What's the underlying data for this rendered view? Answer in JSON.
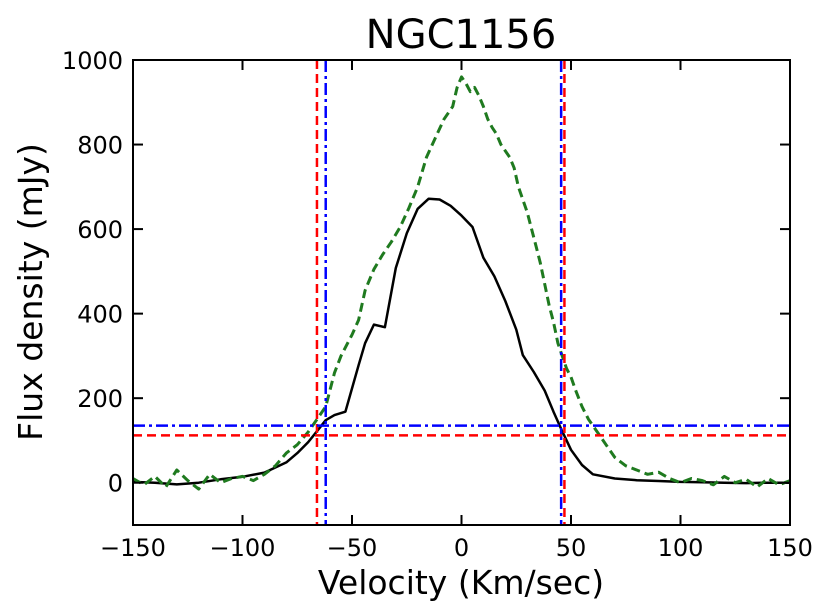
{
  "chart_data": {
    "type": "line",
    "title": "NGC1156",
    "xlabel": "Velocity (Km/sec)",
    "ylabel": "Flux density (mJy)",
    "xlim": [
      -150,
      150
    ],
    "ylim": [
      -100,
      1000
    ],
    "xticks": [
      -150,
      -100,
      -50,
      0,
      50,
      100,
      150
    ],
    "yticks": [
      0,
      200,
      400,
      600,
      800,
      1000
    ],
    "x_tick_labels": [
      "−150",
      "−100",
      "−50",
      "0",
      "50",
      "100",
      "150"
    ],
    "y_tick_labels": [
      "0",
      "200",
      "400",
      "600",
      "800",
      "1000"
    ],
    "grid": false,
    "series": [
      {
        "name": "solid profile",
        "color": "#000000",
        "style": "solid",
        "x": [
          -150,
          -140,
          -130,
          -120,
          -110,
          -100,
          -90,
          -80,
          -75,
          -70,
          -66,
          -62,
          -58,
          -53,
          -47,
          -44,
          -40,
          -35,
          -30,
          -25,
          -20,
          -15,
          -10,
          -5,
          0,
          5,
          10,
          15,
          20,
          25,
          28,
          33,
          38,
          42,
          46,
          50,
          55,
          60,
          70,
          80,
          90,
          100,
          110,
          120,
          130,
          140,
          150
        ],
        "y": [
          2,
          0,
          -4,
          0,
          8,
          14,
          24,
          48,
          70,
          96,
          122,
          148,
          160,
          168,
          278,
          330,
          374,
          368,
          508,
          590,
          648,
          672,
          670,
          655,
          632,
          605,
          532,
          488,
          430,
          362,
          302,
          262,
          218,
          168,
          122,
          78,
          42,
          20,
          10,
          6,
          4,
          2,
          1,
          0,
          -1,
          0,
          0
        ]
      },
      {
        "name": "dashed profile",
        "color": "#1f7a1f",
        "style": "dashed",
        "x": [
          -150,
          -145,
          -140,
          -135,
          -130,
          -125,
          -120,
          -115,
          -110,
          -105,
          -100,
          -95,
          -90,
          -85,
          -80,
          -75,
          -70,
          -66,
          -62,
          -58,
          -55,
          -52,
          -50,
          -47,
          -44,
          -40,
          -36,
          -32,
          -28,
          -24,
          -20,
          -16,
          -12,
          -8,
          -4,
          -2,
          0,
          2,
          4,
          6,
          8,
          10,
          12,
          14,
          16,
          18,
          20,
          22,
          24,
          26,
          28,
          30,
          32,
          34,
          36,
          38,
          40,
          42,
          44,
          46,
          48,
          50,
          52,
          55,
          58,
          62,
          66,
          70,
          75,
          80,
          85,
          90,
          95,
          100,
          105,
          110,
          115,
          120,
          125,
          130,
          135,
          140,
          145,
          150
        ],
        "y": [
          10,
          -5,
          15,
          -10,
          30,
          5,
          -15,
          20,
          0,
          10,
          15,
          5,
          20,
          40,
          70,
          90,
          120,
          150,
          180,
          260,
          300,
          330,
          350,
          385,
          455,
          505,
          540,
          570,
          605,
          650,
          700,
          770,
          815,
          860,
          890,
          935,
          960,
          945,
          925,
          935,
          915,
          890,
          860,
          840,
          825,
          800,
          785,
          770,
          745,
          700,
          670,
          640,
          600,
          560,
          520,
          470,
          420,
          380,
          330,
          300,
          270,
          250,
          220,
          180,
          150,
          120,
          90,
          60,
          40,
          30,
          20,
          25,
          10,
          0,
          10,
          5,
          -5,
          15,
          0,
          8,
          -10,
          10,
          -5,
          5
        ]
      }
    ],
    "reference_lines": [
      {
        "orientation": "vertical",
        "value": -66,
        "color": "#ff0000",
        "style": "dashed"
      },
      {
        "orientation": "vertical",
        "value": 47,
        "color": "#ff0000",
        "style": "dashed"
      },
      {
        "orientation": "vertical",
        "value": -62,
        "color": "#0000ff",
        "style": "dashdot"
      },
      {
        "orientation": "vertical",
        "value": 45.5,
        "color": "#0000ff",
        "style": "dashdot"
      },
      {
        "orientation": "horizontal",
        "value": 112,
        "color": "#ff0000",
        "style": "dashed"
      },
      {
        "orientation": "horizontal",
        "value": 135,
        "color": "#0000ff",
        "style": "dashdot"
      }
    ]
  }
}
